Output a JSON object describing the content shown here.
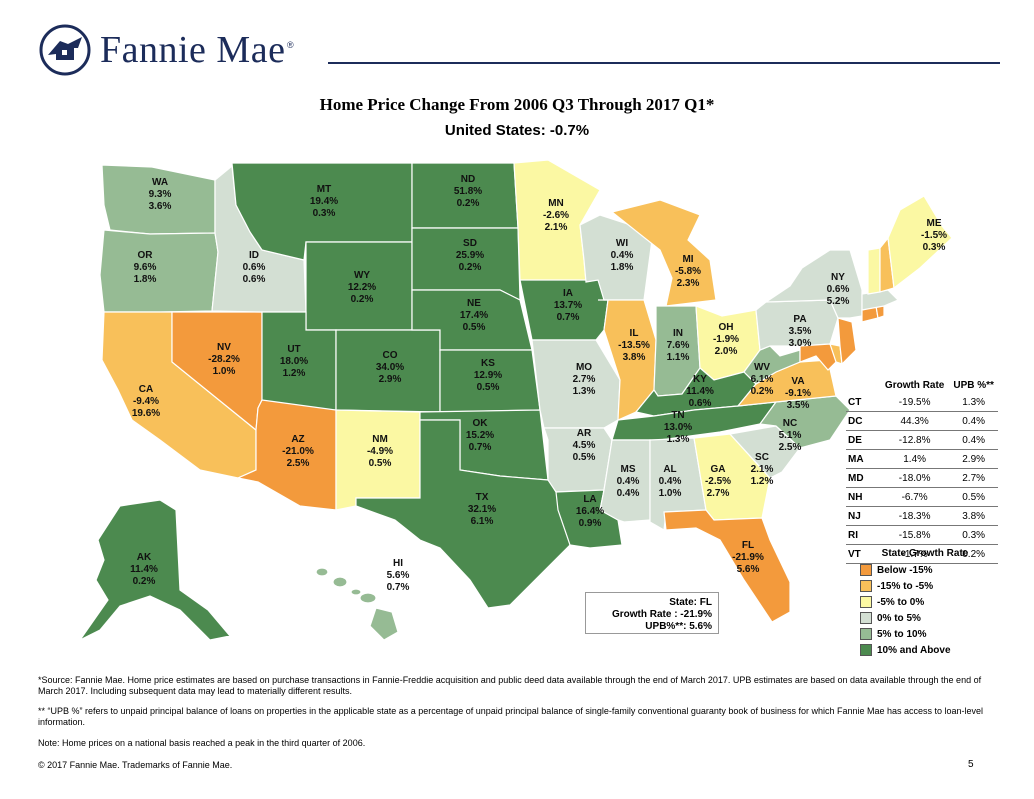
{
  "brand": {
    "name": "Fannie Mae",
    "reg": "®"
  },
  "title": "Home Price Change From 2006 Q3 Through 2017 Q1*",
  "subtitle": "United States: -0.7%",
  "legend": {
    "title": "State Growth Rate",
    "items": [
      {
        "label": "Below -15%",
        "color": "#f39a3c"
      },
      {
        "label": "-15% to -5%",
        "color": "#f8c05a"
      },
      {
        "label": "-5% to 0%",
        "color": "#fbf8a3"
      },
      {
        "label": "0% to 5%",
        "color": "#d3dfd3"
      },
      {
        "label": "5% to 10%",
        "color": "#96bb94"
      },
      {
        "label": "10% and Above",
        "color": "#4c8a4f"
      }
    ]
  },
  "states": {
    "WA": {
      "abbr": "WA",
      "growth": "9.3%",
      "upb": "3.6%"
    },
    "OR": {
      "abbr": "OR",
      "growth": "9.6%",
      "upb": "1.8%"
    },
    "CA": {
      "abbr": "CA",
      "growth": "-9.4%",
      "upb": "19.6%"
    },
    "NV": {
      "abbr": "NV",
      "growth": "-28.2%",
      "upb": "1.0%"
    },
    "ID": {
      "abbr": "ID",
      "growth": "0.6%",
      "upb": "0.6%"
    },
    "MT": {
      "abbr": "MT",
      "growth": "19.4%",
      "upb": "0.3%"
    },
    "WY": {
      "abbr": "WY",
      "growth": "12.2%",
      "upb": "0.2%"
    },
    "UT": {
      "abbr": "UT",
      "growth": "18.0%",
      "upb": "1.2%"
    },
    "AZ": {
      "abbr": "AZ",
      "growth": "-21.0%",
      "upb": "2.5%"
    },
    "CO": {
      "abbr": "CO",
      "growth": "34.0%",
      "upb": "2.9%"
    },
    "NM": {
      "abbr": "NM",
      "growth": "-4.9%",
      "upb": "0.5%"
    },
    "ND": {
      "abbr": "ND",
      "growth": "51.8%",
      "upb": "0.2%"
    },
    "SD": {
      "abbr": "SD",
      "growth": "25.9%",
      "upb": "0.2%"
    },
    "NE": {
      "abbr": "NE",
      "growth": "17.4%",
      "upb": "0.5%"
    },
    "KS": {
      "abbr": "KS",
      "growth": "12.9%",
      "upb": "0.5%"
    },
    "OK": {
      "abbr": "OK",
      "growth": "15.2%",
      "upb": "0.7%"
    },
    "TX": {
      "abbr": "TX",
      "growth": "32.1%",
      "upb": "6.1%"
    },
    "MN": {
      "abbr": "MN",
      "growth": "-2.6%",
      "upb": "2.1%"
    },
    "IA": {
      "abbr": "IA",
      "growth": "13.7%",
      "upb": "0.7%"
    },
    "MO": {
      "abbr": "MO",
      "growth": "2.7%",
      "upb": "1.3%"
    },
    "AR": {
      "abbr": "AR",
      "growth": "4.5%",
      "upb": "0.5%"
    },
    "LA": {
      "abbr": "LA",
      "growth": "16.4%",
      "upb": "0.9%"
    },
    "WI": {
      "abbr": "WI",
      "growth": "0.4%",
      "upb": "1.8%"
    },
    "IL": {
      "abbr": "IL",
      "growth": "-13.5%",
      "upb": "3.8%"
    },
    "MI": {
      "abbr": "MI",
      "growth": "-5.8%",
      "upb": "2.3%"
    },
    "IN": {
      "abbr": "IN",
      "growth": "7.6%",
      "upb": "1.1%"
    },
    "OH": {
      "abbr": "OH",
      "growth": "-1.9%",
      "upb": "2.0%"
    },
    "KY": {
      "abbr": "KY",
      "growth": "11.4%",
      "upb": "0.6%"
    },
    "TN": {
      "abbr": "TN",
      "growth": "13.0%",
      "upb": "1.3%"
    },
    "MS": {
      "abbr": "MS",
      "growth": "0.4%",
      "upb": "0.4%"
    },
    "AL": {
      "abbr": "AL",
      "growth": "0.4%",
      "upb": "1.0%"
    },
    "GA": {
      "abbr": "GA",
      "growth": "-2.5%",
      "upb": "2.7%"
    },
    "FL": {
      "abbr": "FL",
      "growth": "-21.9%",
      "upb": "5.6%"
    },
    "SC": {
      "abbr": "SC",
      "growth": "2.1%",
      "upb": "1.2%"
    },
    "NC": {
      "abbr": "NC",
      "growth": "5.1%",
      "upb": "2.5%"
    },
    "VA": {
      "abbr": "VA",
      "growth": "-9.1%",
      "upb": "3.5%"
    },
    "WV": {
      "abbr": "WV",
      "growth": "6.1%",
      "upb": "0.2%"
    },
    "PA": {
      "abbr": "PA",
      "growth": "3.5%",
      "upb": "3.0%"
    },
    "NY": {
      "abbr": "NY",
      "growth": "0.6%",
      "upb": "5.2%"
    },
    "ME": {
      "abbr": "ME",
      "growth": "-1.5%",
      "upb": "0.3%"
    },
    "AK": {
      "abbr": "AK",
      "growth": "11.4%",
      "upb": "0.2%"
    },
    "HI": {
      "abbr": "HI",
      "growth": "5.6%",
      "upb": "0.7%"
    }
  },
  "callout": {
    "line1": "State: FL",
    "line2": "Growth Rate : -21.9%",
    "line3": "UPB%**: 5.6%"
  },
  "table": {
    "headers": [
      "",
      "Growth Rate",
      "UPB %**"
    ],
    "rows": [
      [
        "CT",
        "-19.5%",
        "1.3%"
      ],
      [
        "DC",
        "44.3%",
        "0.4%"
      ],
      [
        "DE",
        "-12.8%",
        "0.4%"
      ],
      [
        "MA",
        "1.4%",
        "2.9%"
      ],
      [
        "MD",
        "-18.0%",
        "2.7%"
      ],
      [
        "NH",
        "-6.7%",
        "0.5%"
      ],
      [
        "NJ",
        "-18.3%",
        "3.8%"
      ],
      [
        "RI",
        "-15.8%",
        "0.3%"
      ],
      [
        "VT",
        "-1.7%",
        "0.2%"
      ]
    ]
  },
  "footnotes": {
    "source": "*Source: Fannie Mae. Home price estimates are based on purchase transactions in Fannie-Freddie acquisition and public deed data available through the end of March 2017. UPB estimates are based on data available through the end of March 2017. Including subsequent data may lead to materially different results.",
    "upb": "** “UPB %” refers to unpaid principal balance of loans on properties in the applicable state as a percentage of unpaid principal balance of single-family conventional guaranty book of business for which Fannie Mae has access to loan-level information.",
    "note": "Note: Home prices on a national basis reached a peak in the third quarter of 2006.",
    "copyright": "© 2017 Fannie Mae. Trademarks of Fannie Mae."
  },
  "page_number": "5"
}
